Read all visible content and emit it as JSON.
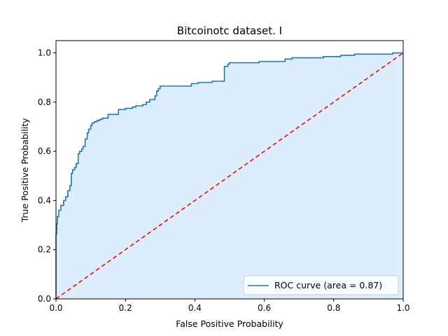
{
  "chart_data": {
    "type": "line",
    "title": "Bitcoinotc dataset. I",
    "xlabel": "False Positive Probability",
    "ylabel": "True Positive Probability",
    "xlim": [
      0,
      1
    ],
    "ylim": [
      0,
      1.05
    ],
    "xticks": [
      "0.0",
      "0.2",
      "0.4",
      "0.6",
      "0.8",
      "1.0"
    ],
    "yticks": [
      "0.0",
      "0.2",
      "0.4",
      "0.6",
      "0.8",
      "1.0"
    ],
    "grid": false,
    "legend": {
      "position": "lower-right",
      "entries": [
        "ROC curve (area = 0.87)"
      ]
    },
    "series": [
      {
        "name": "ROC curve (area = 0.87)",
        "color": "#1f77b4",
        "fill": "#dcedfc",
        "style": "step",
        "x": [
          0.0,
          0.0,
          0.002,
          0.002,
          0.004,
          0.004,
          0.008,
          0.008,
          0.014,
          0.014,
          0.022,
          0.022,
          0.028,
          0.028,
          0.034,
          0.034,
          0.04,
          0.04,
          0.044,
          0.044,
          0.048,
          0.048,
          0.054,
          0.054,
          0.058,
          0.058,
          0.064,
          0.064,
          0.068,
          0.068,
          0.074,
          0.074,
          0.078,
          0.078,
          0.084,
          0.084,
          0.09,
          0.09,
          0.094,
          0.094,
          0.1,
          0.1,
          0.104,
          0.104,
          0.11,
          0.11,
          0.118,
          0.118,
          0.126,
          0.126,
          0.134,
          0.134,
          0.15,
          0.15,
          0.18,
          0.18,
          0.2,
          0.2,
          0.22,
          0.22,
          0.23,
          0.23,
          0.25,
          0.25,
          0.26,
          0.26,
          0.27,
          0.27,
          0.285,
          0.285,
          0.29,
          0.29,
          0.295,
          0.295,
          0.3,
          0.3,
          0.39,
          0.39,
          0.41,
          0.41,
          0.45,
          0.45,
          0.485,
          0.485,
          0.495,
          0.495,
          0.5,
          0.5,
          0.585,
          0.585,
          0.66,
          0.66,
          0.68,
          0.68,
          0.77,
          0.77,
          0.82,
          0.82,
          0.86,
          0.86,
          0.97,
          0.97,
          1.0
        ],
        "y": [
          0.0,
          0.265,
          0.265,
          0.305,
          0.305,
          0.335,
          0.335,
          0.36,
          0.36,
          0.38,
          0.38,
          0.4,
          0.4,
          0.415,
          0.415,
          0.44,
          0.44,
          0.46,
          0.46,
          0.51,
          0.51,
          0.525,
          0.525,
          0.535,
          0.535,
          0.55,
          0.55,
          0.59,
          0.59,
          0.6,
          0.6,
          0.61,
          0.61,
          0.62,
          0.62,
          0.65,
          0.65,
          0.675,
          0.675,
          0.69,
          0.69,
          0.705,
          0.705,
          0.715,
          0.715,
          0.72,
          0.72,
          0.725,
          0.725,
          0.73,
          0.73,
          0.735,
          0.735,
          0.75,
          0.75,
          0.77,
          0.77,
          0.775,
          0.775,
          0.78,
          0.78,
          0.785,
          0.785,
          0.79,
          0.79,
          0.8,
          0.8,
          0.81,
          0.81,
          0.825,
          0.825,
          0.845,
          0.845,
          0.855,
          0.855,
          0.865,
          0.865,
          0.875,
          0.875,
          0.88,
          0.88,
          0.885,
          0.885,
          0.945,
          0.945,
          0.955,
          0.955,
          0.96,
          0.96,
          0.965,
          0.965,
          0.975,
          0.975,
          0.98,
          0.98,
          0.985,
          0.985,
          0.99,
          0.99,
          0.995,
          0.995,
          1.0,
          1.0
        ]
      },
      {
        "name": "",
        "color": "#ff0000",
        "style": "dashed",
        "x": [
          0,
          1
        ],
        "y": [
          0,
          1
        ]
      }
    ]
  }
}
